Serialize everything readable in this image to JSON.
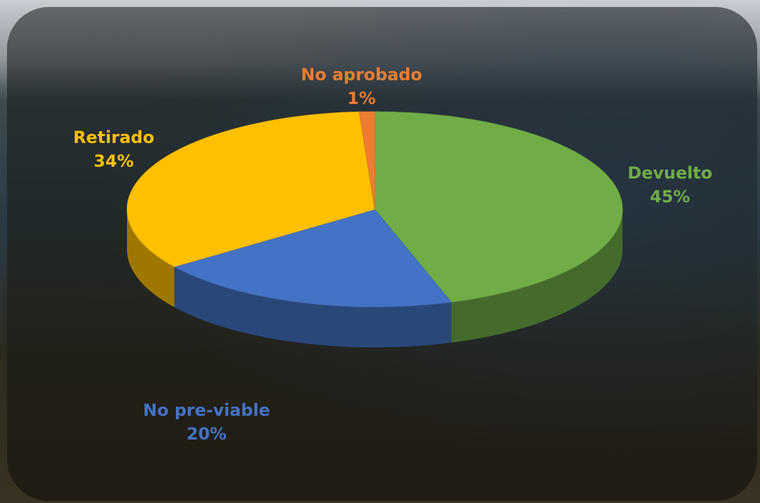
{
  "chart_data": {
    "type": "pie",
    "categories": [
      "Devuelto",
      "No pre-viable",
      "Retirado",
      "No aprobado"
    ],
    "values": [
      45,
      20,
      34,
      1
    ],
    "value_labels": [
      "45%",
      "20%",
      "34%",
      "1%"
    ],
    "colors": [
      "#70ad47",
      "#4472c4",
      "#ffc000",
      "#ed7d31"
    ]
  }
}
